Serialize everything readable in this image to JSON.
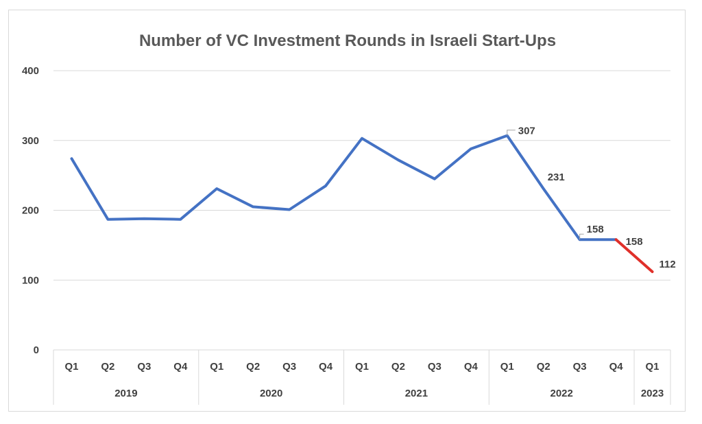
{
  "chart_data": {
    "type": "line",
    "title": "Number of VC Investment Rounds in Israeli Start-Ups",
    "xlabel": "",
    "ylabel": "",
    "ylim": [
      0,
      400
    ],
    "yticks": [
      0,
      100,
      200,
      300,
      400
    ],
    "grid": true,
    "categories": [
      "Q1",
      "Q2",
      "Q3",
      "Q4",
      "Q1",
      "Q2",
      "Q3",
      "Q4",
      "Q1",
      "Q2",
      "Q3",
      "Q4",
      "Q1",
      "Q2",
      "Q3",
      "Q4",
      "Q1"
    ],
    "groups": [
      {
        "label": "2019",
        "count": 4
      },
      {
        "label": "2020",
        "count": 4
      },
      {
        "label": "2021",
        "count": 4
      },
      {
        "label": "2022",
        "count": 4
      },
      {
        "label": "2023",
        "count": 1
      }
    ],
    "series": [
      {
        "color": "#4472c4",
        "values": [
          274,
          187,
          188,
          187,
          231,
          205,
          201,
          235,
          303,
          272,
          245,
          288,
          307,
          231,
          158,
          158,
          null
        ]
      },
      {
        "color": "#e0302a",
        "values": [
          null,
          null,
          null,
          null,
          null,
          null,
          null,
          null,
          null,
          null,
          null,
          null,
          null,
          null,
          null,
          158,
          112
        ]
      }
    ],
    "data_labels": [
      {
        "index": 12,
        "text": "307"
      },
      {
        "index": 13,
        "text": "231"
      },
      {
        "index": 14,
        "text": "158"
      },
      {
        "index": 15,
        "text": "158"
      },
      {
        "index": 16,
        "text": "112"
      }
    ]
  }
}
